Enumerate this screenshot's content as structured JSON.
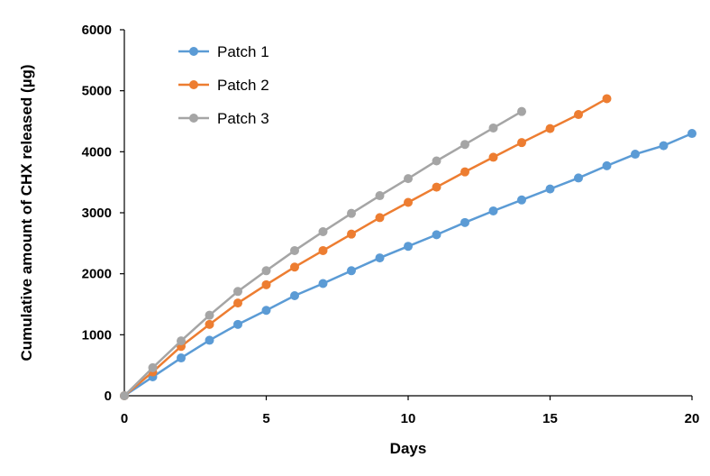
{
  "chart_data": {
    "type": "line",
    "xlabel": "Days",
    "ylabel": "Cumulative amount of CHX released (µg)",
    "xlim": [
      0,
      20
    ],
    "ylim": [
      0,
      6000
    ],
    "xticks": [
      0,
      5,
      10,
      15,
      20
    ],
    "yticks": [
      0,
      1000,
      2000,
      3000,
      4000,
      5000,
      6000
    ],
    "grid": false,
    "legend_position": "top-left",
    "series": [
      {
        "name": "Patch 1",
        "color": "#5b9bd5",
        "x": [
          0,
          1,
          2,
          3,
          4,
          5,
          6,
          7,
          8,
          9,
          10,
          11,
          12,
          13,
          14,
          15,
          16,
          17,
          18,
          19,
          20
        ],
        "values": [
          0,
          310,
          620,
          910,
          1170,
          1400,
          1640,
          1840,
          2050,
          2260,
          2450,
          2640,
          2840,
          3030,
          3210,
          3390,
          3570,
          3770,
          3960,
          4100,
          4300
        ]
      },
      {
        "name": "Patch 2",
        "color": "#ed7d31",
        "x": [
          0,
          1,
          2,
          3,
          4,
          5,
          6,
          7,
          8,
          9,
          10,
          11,
          12,
          13,
          14,
          15,
          16,
          17
        ],
        "values": [
          0,
          390,
          810,
          1170,
          1520,
          1820,
          2110,
          2380,
          2650,
          2920,
          3170,
          3420,
          3670,
          3910,
          4150,
          4380,
          4610,
          4870
        ]
      },
      {
        "name": "Patch 3",
        "color": "#a5a5a5",
        "x": [
          0,
          1,
          2,
          3,
          4,
          5,
          6,
          7,
          8,
          9,
          10,
          11,
          12,
          13,
          14
        ],
        "values": [
          0,
          460,
          900,
          1320,
          1710,
          2050,
          2380,
          2690,
          2990,
          3280,
          3560,
          3850,
          4120,
          4390,
          4660
        ]
      }
    ]
  }
}
